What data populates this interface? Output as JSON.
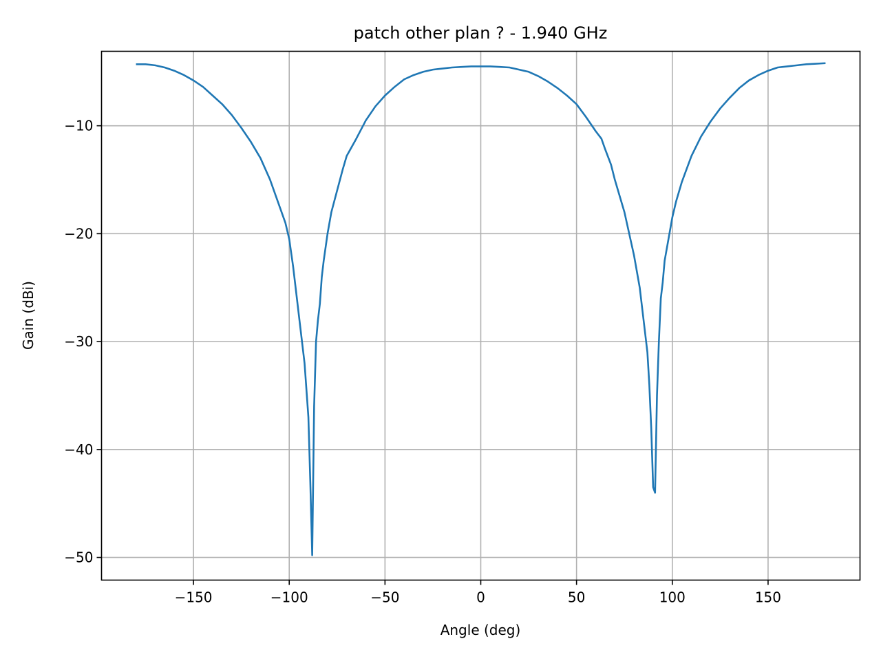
{
  "chart_data": {
    "type": "line",
    "title": "patch other plan ? - 1.940 GHz",
    "xlabel": "Angle (deg)",
    "ylabel": "Gain (dBi)",
    "xlim": [
      -198,
      198
    ],
    "ylim": [
      -52.1,
      -3.1
    ],
    "grid": true,
    "legend": "none",
    "color": "#1f77b4",
    "xticks": [
      {
        "value": -150,
        "label": "−150"
      },
      {
        "value": -100,
        "label": "−100"
      },
      {
        "value": -50,
        "label": "−50"
      },
      {
        "value": 0,
        "label": "0"
      },
      {
        "value": 50,
        "label": "50"
      },
      {
        "value": 100,
        "label": "100"
      },
      {
        "value": 150,
        "label": "150"
      }
    ],
    "yticks": [
      {
        "value": -10,
        "label": "−10"
      },
      {
        "value": -20,
        "label": "−20"
      },
      {
        "value": -30,
        "label": "−30"
      },
      {
        "value": -40,
        "label": "−40"
      },
      {
        "value": -50,
        "label": "−50"
      }
    ],
    "series": [
      {
        "x": [
          -180,
          -175,
          -170,
          -165,
          -160,
          -155,
          -150,
          -145,
          -140,
          -135,
          -130,
          -125,
          -120,
          -115,
          -110,
          -105,
          -102,
          -100,
          -98,
          -96,
          -94,
          -92,
          -90,
          -89,
          -88,
          -87,
          -86,
          -85,
          -84,
          -83,
          -82,
          -80,
          -78,
          -75,
          -72,
          -70,
          -65,
          -60,
          -55,
          -50,
          -45,
          -40,
          -35,
          -30,
          -25,
          -20,
          -15,
          -10,
          -5,
          0,
          5,
          10,
          15,
          20,
          25,
          30,
          35,
          40,
          45,
          50,
          55,
          60,
          63,
          65,
          68,
          70,
          75,
          80,
          83,
          85,
          87,
          88,
          89,
          90,
          91,
          92,
          93,
          94,
          95,
          96,
          98,
          100,
          102,
          105,
          110,
          115,
          120,
          125,
          130,
          135,
          140,
          145,
          150,
          155,
          160,
          165,
          170,
          175,
          180
        ],
        "y": [
          -4.3,
          -4.3,
          -4.4,
          -4.6,
          -4.9,
          -5.3,
          -5.8,
          -6.4,
          -7.2,
          -8.0,
          -9.0,
          -10.2,
          -11.5,
          -13.0,
          -15.0,
          -17.5,
          -19.0,
          -20.5,
          -23.0,
          -26.0,
          -29.0,
          -32.0,
          -37.0,
          -43.0,
          -49.8,
          -36.0,
          -30.0,
          -28.0,
          -26.5,
          -24.0,
          -22.5,
          -20.0,
          -18.0,
          -16.0,
          -14.0,
          -12.8,
          -11.2,
          -9.5,
          -8.2,
          -7.2,
          -6.4,
          -5.7,
          -5.3,
          -5.0,
          -4.8,
          -4.7,
          -4.6,
          -4.55,
          -4.5,
          -4.5,
          -4.5,
          -4.55,
          -4.6,
          -4.8,
          -5.0,
          -5.4,
          -5.9,
          -6.5,
          -7.2,
          -8.0,
          -9.2,
          -10.5,
          -11.2,
          -12.2,
          -13.6,
          -15.0,
          -18.0,
          -22.0,
          -25.0,
          -28.0,
          -31.0,
          -34.0,
          -38.0,
          -43.5,
          -44.0,
          -35.0,
          -30.0,
          -26.0,
          -24.5,
          -22.5,
          -20.5,
          -18.5,
          -17.0,
          -15.2,
          -12.8,
          -11.0,
          -9.6,
          -8.4,
          -7.4,
          -6.5,
          -5.8,
          -5.3,
          -4.9,
          -4.6,
          -4.5,
          -4.4,
          -4.3,
          -4.25,
          -4.2
        ]
      }
    ]
  }
}
